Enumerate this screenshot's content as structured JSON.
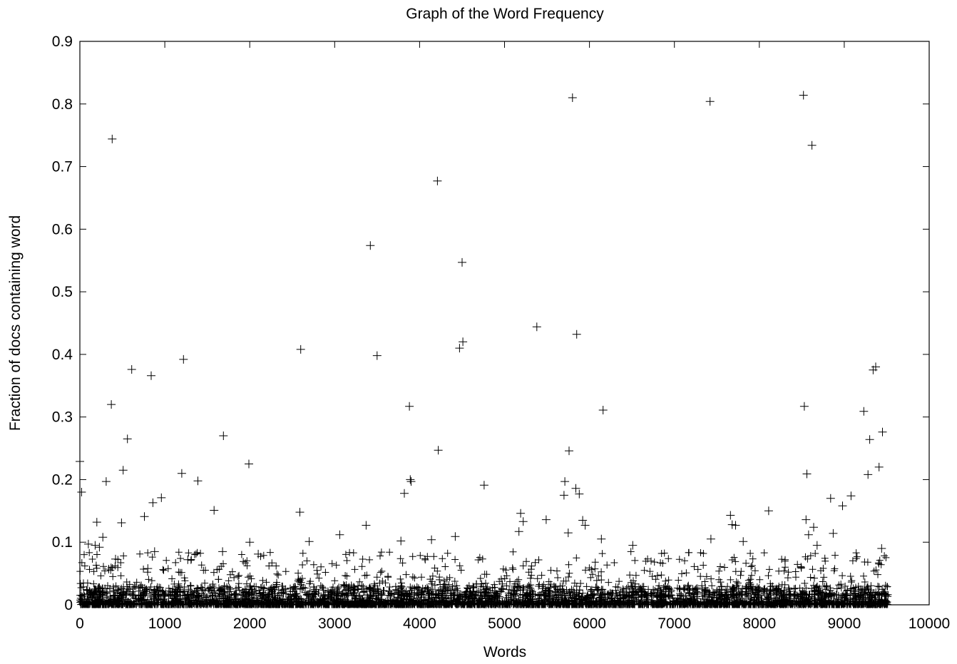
{
  "chart_data": {
    "type": "scatter",
    "title": "Graph of the Word Frequency",
    "xlabel": "Words",
    "ylabel": "Fraction of docs containing word",
    "xlim": [
      0,
      10000
    ],
    "ylim": [
      0,
      0.9
    ],
    "xticks": [
      "0",
      "1000",
      "2000",
      "3000",
      "4000",
      "5000",
      "6000",
      "7000",
      "8000",
      "9000",
      "10000"
    ],
    "yticks": [
      "0",
      "0.1",
      "0.2",
      "0.3",
      "0.4",
      "0.5",
      "0.6",
      "0.7",
      "0.8",
      "0.9"
    ],
    "xtick_values": [
      0,
      1000,
      2000,
      3000,
      4000,
      5000,
      6000,
      7000,
      8000,
      9000,
      10000
    ],
    "ytick_values": [
      0,
      0.1,
      0.2,
      0.3,
      0.4,
      0.5,
      0.6,
      0.7,
      0.8,
      0.9
    ],
    "marker": "plus",
    "grid": false,
    "legend": "none",
    "x_extent": 9520,
    "points": [
      [
        0,
        0.229
      ],
      [
        20,
        0.18
      ],
      [
        100,
        0.097
      ],
      [
        180,
        0.095
      ],
      [
        200,
        0.132
      ],
      [
        230,
        0.092
      ],
      [
        270,
        0.108
      ],
      [
        310,
        0.197
      ],
      [
        340,
        0.057
      ],
      [
        370,
        0.32
      ],
      [
        380,
        0.744
      ],
      [
        420,
        0.073
      ],
      [
        490,
        0.131
      ],
      [
        510,
        0.215
      ],
      [
        560,
        0.265
      ],
      [
        610,
        0.376
      ],
      [
        760,
        0.141
      ],
      [
        800,
        0.058
      ],
      [
        840,
        0.366
      ],
      [
        860,
        0.163
      ],
      [
        880,
        0.085
      ],
      [
        960,
        0.171
      ],
      [
        1200,
        0.21
      ],
      [
        1220,
        0.392
      ],
      [
        1270,
        0.072
      ],
      [
        1390,
        0.198
      ],
      [
        1580,
        0.151
      ],
      [
        1680,
        0.085
      ],
      [
        1690,
        0.27
      ],
      [
        1990,
        0.225
      ],
      [
        2000,
        0.1
      ],
      [
        2100,
        0.081
      ],
      [
        2590,
        0.148
      ],
      [
        2600,
        0.408
      ],
      [
        2700,
        0.101
      ],
      [
        3060,
        0.112
      ],
      [
        3370,
        0.127
      ],
      [
        3420,
        0.574
      ],
      [
        3500,
        0.398
      ],
      [
        3780,
        0.102
      ],
      [
        3820,
        0.178
      ],
      [
        3880,
        0.317
      ],
      [
        3890,
        0.2
      ],
      [
        3900,
        0.197
      ],
      [
        4140,
        0.104
      ],
      [
        4210,
        0.677
      ],
      [
        4220,
        0.247
      ],
      [
        4420,
        0.109
      ],
      [
        4470,
        0.41
      ],
      [
        4500,
        0.547
      ],
      [
        4510,
        0.42
      ],
      [
        4760,
        0.191
      ],
      [
        5170,
        0.117
      ],
      [
        5190,
        0.146
      ],
      [
        5220,
        0.133
      ],
      [
        5380,
        0.444
      ],
      [
        5490,
        0.136
      ],
      [
        5700,
        0.175
      ],
      [
        5710,
        0.197
      ],
      [
        5750,
        0.115
      ],
      [
        5760,
        0.246
      ],
      [
        5800,
        0.81
      ],
      [
        5840,
        0.186
      ],
      [
        5850,
        0.432
      ],
      [
        5880,
        0.177
      ],
      [
        5920,
        0.135
      ],
      [
        5950,
        0.127
      ],
      [
        6140,
        0.105
      ],
      [
        6160,
        0.311
      ],
      [
        6510,
        0.095
      ],
      [
        7420,
        0.804
      ],
      [
        7430,
        0.105
      ],
      [
        7660,
        0.143
      ],
      [
        7680,
        0.128
      ],
      [
        7720,
        0.127
      ],
      [
        7810,
        0.101
      ],
      [
        8110,
        0.15
      ],
      [
        8520,
        0.814
      ],
      [
        8530,
        0.317
      ],
      [
        8550,
        0.136
      ],
      [
        8560,
        0.209
      ],
      [
        8580,
        0.112
      ],
      [
        8620,
        0.734
      ],
      [
        8640,
        0.124
      ],
      [
        8680,
        0.095
      ],
      [
        8840,
        0.17
      ],
      [
        8870,
        0.114
      ],
      [
        8980,
        0.158
      ],
      [
        9080,
        0.174
      ],
      [
        9230,
        0.309
      ],
      [
        9280,
        0.208
      ],
      [
        9300,
        0.264
      ],
      [
        9340,
        0.375
      ],
      [
        9370,
        0.38
      ],
      [
        9410,
        0.22
      ],
      [
        9450,
        0.276
      ],
      [
        9440,
        0.09
      ]
    ]
  }
}
